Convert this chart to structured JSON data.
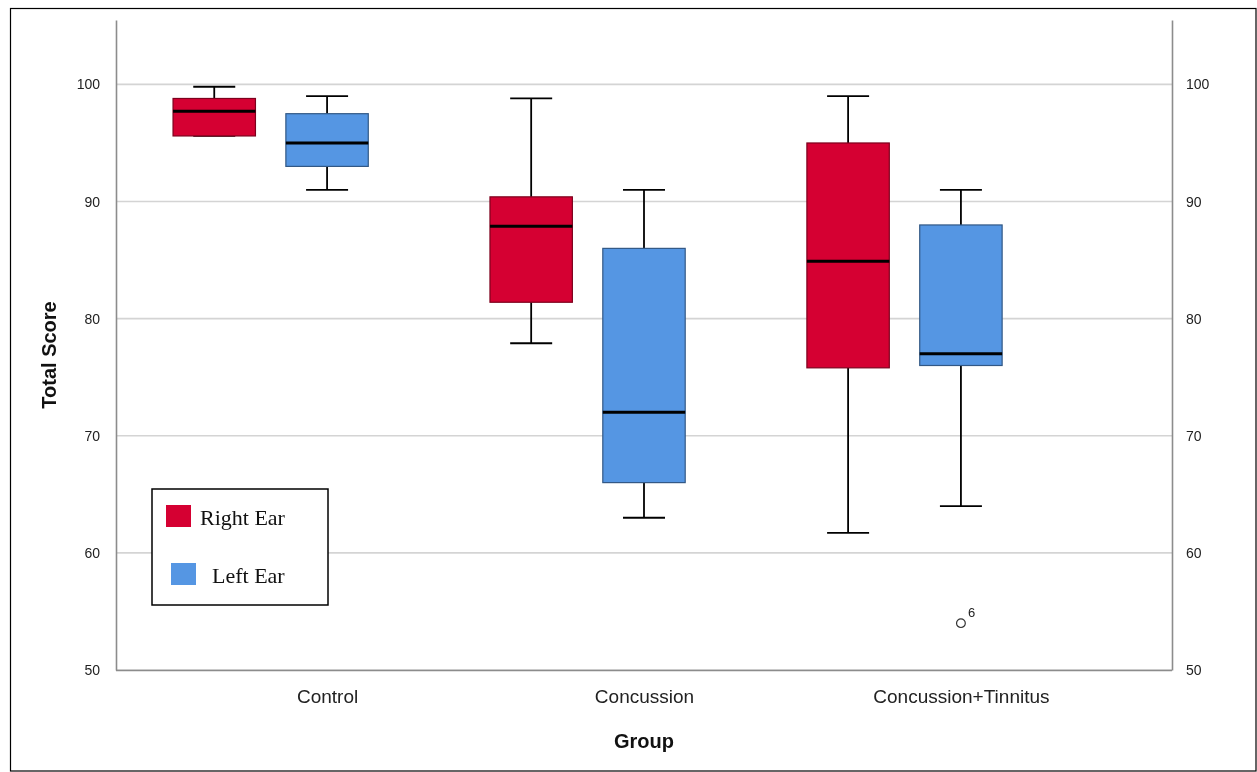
{
  "chart_data": {
    "type": "box",
    "xlabel": "Group",
    "ylabel": "Total Score",
    "categories": [
      "Control",
      "Concussion",
      "Concussion+Tinnitus"
    ],
    "series": [
      {
        "name": "Right Ear",
        "color": "#d50032",
        "boxes": [
          {
            "low": 95.6,
            "q1": 95.6,
            "median": 97.7,
            "q3": 98.8,
            "high": 99.8
          },
          {
            "low": 77.9,
            "q1": 81.4,
            "median": 87.9,
            "q3": 90.4,
            "high": 98.8
          },
          {
            "low": 61.7,
            "q1": 75.8,
            "median": 84.9,
            "q3": 95,
            "high": 99
          }
        ]
      },
      {
        "name": "Left Ear",
        "color": "#5596e3",
        "boxes": [
          {
            "low": 91,
            "q1": 93,
            "median": 95,
            "q3": 97.5,
            "high": 99
          },
          {
            "low": 63,
            "q1": 66,
            "median": 72,
            "q3": 86,
            "high": 91
          },
          {
            "low": 64,
            "q1": 76,
            "median": 77,
            "q3": 88,
            "high": 91,
            "outliers": [
              54
            ]
          }
        ]
      }
    ],
    "ylim": [
      50,
      105.5
    ],
    "yticks": [
      50,
      60,
      70,
      80,
      90,
      100
    ],
    "y2lim": [
      50,
      105.5
    ],
    "y2ticks": [
      50,
      60,
      70,
      80,
      90,
      100
    ],
    "grid": "y",
    "legend": "bottom left",
    "annotations": [
      "6"
    ]
  }
}
